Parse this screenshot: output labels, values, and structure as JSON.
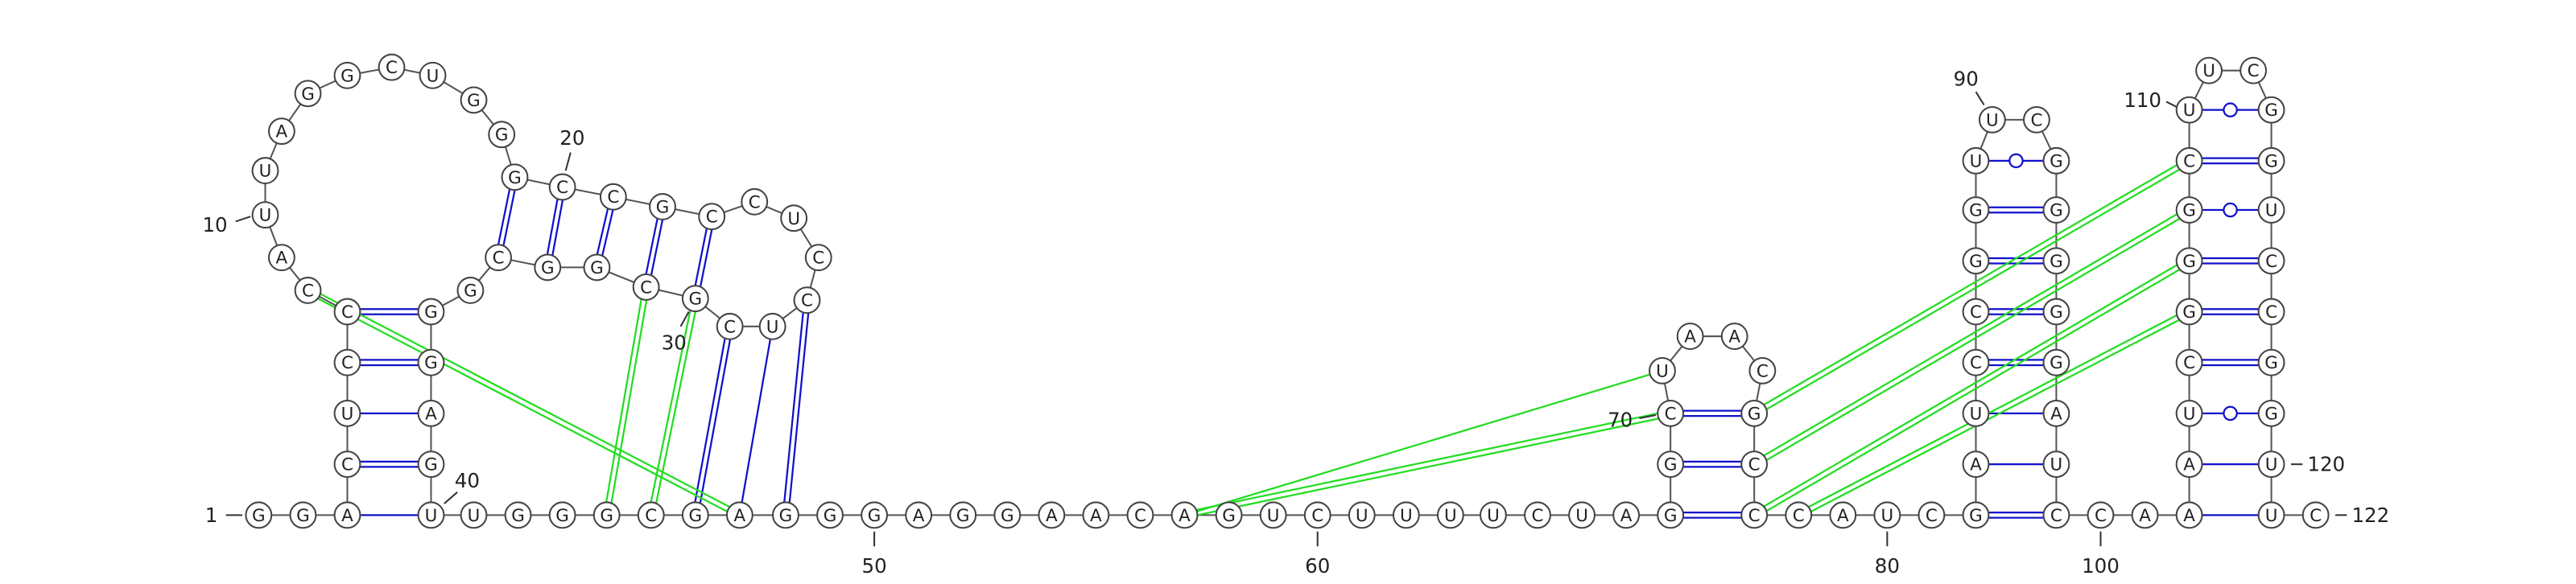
{
  "nucleotides": [
    "G",
    "G",
    "A",
    "C",
    "U",
    "C",
    "C",
    "C",
    "A",
    "U",
    "U",
    "A",
    "G",
    "G",
    "C",
    "U",
    "G",
    "G",
    "G",
    "C",
    "C",
    "G",
    "C",
    "C",
    "U",
    "C",
    "C",
    "U",
    "C",
    "G",
    "C",
    "G",
    "G",
    "C",
    "G",
    "G",
    "G",
    "A",
    "G",
    "U",
    "U",
    "G",
    "G",
    "G",
    "C",
    "G",
    "A",
    "G",
    "G",
    "G",
    "A",
    "G",
    "G",
    "A",
    "A",
    "C",
    "A",
    "G",
    "U",
    "C",
    "U",
    "U",
    "U",
    "U",
    "C",
    "U",
    "A",
    "G",
    "G",
    "C",
    "U",
    "A",
    "A",
    "C",
    "G",
    "C",
    "C",
    "C",
    "A",
    "U",
    "C",
    "G",
    "A",
    "U",
    "C",
    "C",
    "G",
    "G",
    "U",
    "U",
    "C",
    "G",
    "G",
    "G",
    "G",
    "G",
    "A",
    "U",
    "C",
    "C",
    "A",
    "A",
    "A",
    "U",
    "C",
    "G",
    "G",
    "G",
    "C",
    "U",
    "U",
    "C",
    "G",
    "G",
    "U",
    "C",
    "C",
    "G",
    "G",
    "U",
    "U",
    "C"
  ],
  "position_labels": [
    1,
    10,
    20,
    30,
    40,
    50,
    60,
    70,
    80,
    90,
    100,
    110,
    120,
    122
  ]
}
